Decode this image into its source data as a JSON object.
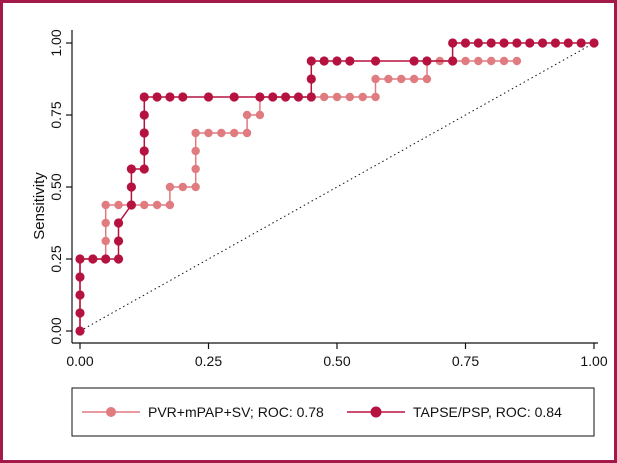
{
  "chart_data": {
    "type": "line",
    "title": "",
    "xlabel": "",
    "ylabel": "Sensitivity",
    "xlim": [
      0,
      1
    ],
    "ylim": [
      0,
      1
    ],
    "x_ticks": [
      "0.00",
      "0.25",
      "0.50",
      "0.75",
      "1.00"
    ],
    "y_ticks": [
      "0.00",
      "0.25",
      "0.50",
      "0.75",
      "1.00"
    ],
    "grid": false,
    "legend_position": "bottom",
    "reference_line": {
      "type": "diagonal",
      "style": "dotted",
      "from": [
        0,
        0
      ],
      "to": [
        1,
        1
      ]
    },
    "series": [
      {
        "name": "PVR+mPAP+SV; ROC:  0.78",
        "color": "#e07b80",
        "points": [
          [
            0,
            0
          ],
          [
            0,
            0.25
          ],
          [
            0.05,
            0.25
          ],
          [
            0.05,
            0.3125
          ],
          [
            0.05,
            0.375
          ],
          [
            0.05,
            0.4375
          ],
          [
            0.075,
            0.4375
          ],
          [
            0.1,
            0.4375
          ],
          [
            0.125,
            0.4375
          ],
          [
            0.15,
            0.4375
          ],
          [
            0.175,
            0.4375
          ],
          [
            0.175,
            0.5
          ],
          [
            0.2,
            0.5
          ],
          [
            0.225,
            0.5
          ],
          [
            0.225,
            0.5625
          ],
          [
            0.225,
            0.625
          ],
          [
            0.225,
            0.6875
          ],
          [
            0.25,
            0.6875
          ],
          [
            0.275,
            0.6875
          ],
          [
            0.3,
            0.6875
          ],
          [
            0.325,
            0.6875
          ],
          [
            0.325,
            0.75
          ],
          [
            0.35,
            0.75
          ],
          [
            0.35,
            0.8125
          ],
          [
            0.375,
            0.8125
          ],
          [
            0.4,
            0.8125
          ],
          [
            0.425,
            0.8125
          ],
          [
            0.45,
            0.8125
          ],
          [
            0.475,
            0.8125
          ],
          [
            0.5,
            0.8125
          ],
          [
            0.525,
            0.8125
          ],
          [
            0.55,
            0.8125
          ],
          [
            0.575,
            0.8125
          ],
          [
            0.575,
            0.875
          ],
          [
            0.6,
            0.875
          ],
          [
            0.625,
            0.875
          ],
          [
            0.65,
            0.875
          ],
          [
            0.675,
            0.875
          ],
          [
            0.675,
            0.9375
          ],
          [
            0.7,
            0.9375
          ],
          [
            0.725,
            0.9375
          ],
          [
            0.75,
            0.9375
          ],
          [
            0.775,
            0.9375
          ],
          [
            0.8,
            0.9375
          ],
          [
            0.825,
            0.9375
          ],
          [
            0.85,
            0.9375
          ]
        ]
      },
      {
        "name": "TAPSE/PSP,  ROC:  0.84",
        "color": "#b5123f",
        "points": [
          [
            0,
            0
          ],
          [
            0,
            0.0625
          ],
          [
            0,
            0.125
          ],
          [
            0,
            0.1875
          ],
          [
            0,
            0.25
          ],
          [
            0.025,
            0.25
          ],
          [
            0.05,
            0.25
          ],
          [
            0.075,
            0.25
          ],
          [
            0.075,
            0.3125
          ],
          [
            0.075,
            0.375
          ],
          [
            0.1,
            0.4375
          ],
          [
            0.1,
            0.5
          ],
          [
            0.1,
            0.5625
          ],
          [
            0.125,
            0.5625
          ],
          [
            0.125,
            0.625
          ],
          [
            0.125,
            0.6875
          ],
          [
            0.125,
            0.75
          ],
          [
            0.125,
            0.8125
          ],
          [
            0.15,
            0.8125
          ],
          [
            0.175,
            0.8125
          ],
          [
            0.2,
            0.8125
          ],
          [
            0.25,
            0.8125
          ],
          [
            0.3,
            0.8125
          ],
          [
            0.35,
            0.8125
          ],
          [
            0.375,
            0.8125
          ],
          [
            0.4,
            0.8125
          ],
          [
            0.425,
            0.8125
          ],
          [
            0.45,
            0.8125
          ],
          [
            0.45,
            0.875
          ],
          [
            0.45,
            0.9375
          ],
          [
            0.475,
            0.9375
          ],
          [
            0.5,
            0.9375
          ],
          [
            0.525,
            0.9375
          ],
          [
            0.575,
            0.9375
          ],
          [
            0.65,
            0.9375
          ],
          [
            0.675,
            0.9375
          ],
          [
            0.725,
            0.9375
          ],
          [
            0.725,
            1
          ],
          [
            0.75,
            1
          ],
          [
            0.775,
            1
          ],
          [
            0.8,
            1
          ],
          [
            0.825,
            1
          ],
          [
            0.85,
            1
          ],
          [
            0.875,
            1
          ],
          [
            0.9,
            1
          ],
          [
            0.925,
            1
          ],
          [
            0.95,
            1
          ],
          [
            0.975,
            1
          ],
          [
            1,
            1
          ]
        ]
      }
    ]
  }
}
